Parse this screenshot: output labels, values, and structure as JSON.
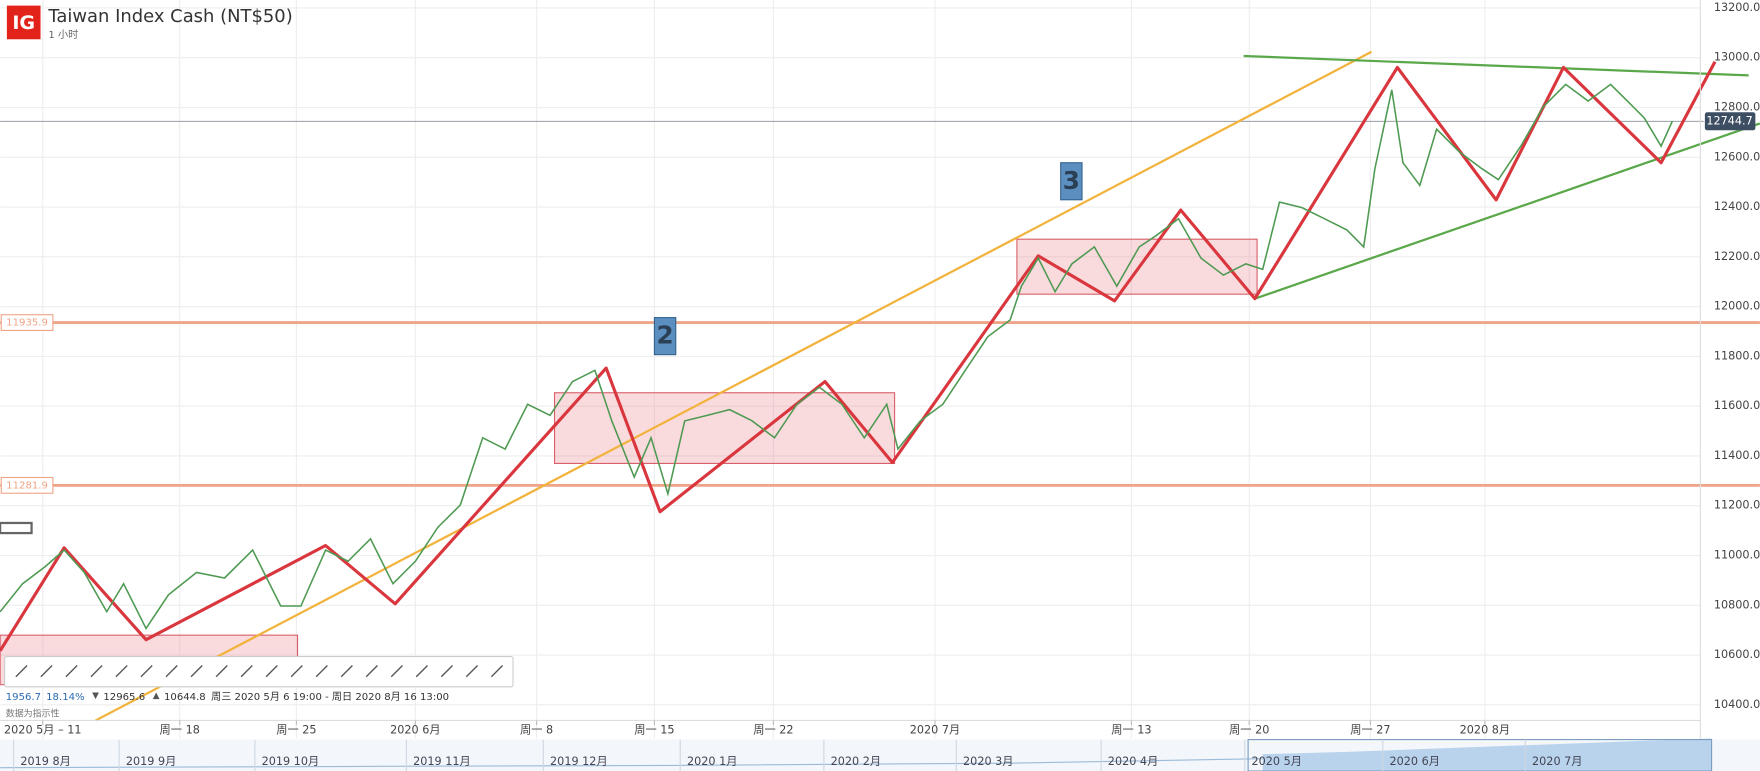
{
  "header": {
    "logo": "IG",
    "title": "Taiwan Index Cash (NT$50)",
    "interval": "1 小时"
  },
  "chart_data": {
    "type": "line",
    "color": "#4f9a52",
    "x": [
      0,
      20,
      40,
      57,
      75,
      95,
      110,
      130,
      150,
      175,
      200,
      225,
      250,
      268,
      290,
      310,
      330,
      350,
      370,
      390,
      410,
      430,
      450,
      470,
      490,
      510,
      530,
      545,
      565,
      580,
      595,
      610,
      630,
      650,
      670,
      690,
      710,
      730,
      750,
      770,
      790,
      800,
      820,
      840,
      860,
      880,
      900,
      910,
      925,
      940,
      955,
      975,
      995,
      1015,
      1030,
      1050,
      1070,
      1090,
      1110,
      1125,
      1140,
      1160,
      1180,
      1200,
      1215,
      1225,
      1240,
      1250,
      1265,
      1280,
      1300,
      1320,
      1335,
      1355,
      1375,
      1395,
      1415,
      1435,
      1450,
      1465,
      1480,
      1490
    ],
    "values": [
      10774,
      10887,
      10955,
      11022,
      10932,
      10774,
      10887,
      10707,
      10842,
      10932,
      10910,
      11022,
      10797,
      10797,
      11022,
      10977,
      11067,
      10887,
      10977,
      11113,
      11203,
      11473,
      11428,
      11608,
      11563,
      11699,
      11744,
      11541,
      11315,
      11473,
      11248,
      11541,
      11563,
      11586,
      11541,
      11473,
      11608,
      11676,
      11608,
      11473,
      11608,
      11428,
      11541,
      11608,
      11744,
      11879,
      11947,
      12082,
      12195,
      12060,
      12172,
      12240,
      12082,
      12240,
      12285,
      12353,
      12195,
      12127,
      12172,
      12150,
      12420,
      12398,
      12353,
      12308,
      12240,
      12555,
      12871,
      12578,
      12487,
      12713,
      12623,
      12555,
      12510,
      12645,
      12803,
      12893,
      12826,
      12893,
      12826,
      12758,
      12645,
      12745
    ],
    "xlim": [
      0,
      1515
    ],
    "ylim": [
      10265,
      13232
    ],
    "xticks": [
      {
        "value": 38,
        "label": "2020 5月 – 11"
      },
      {
        "value": 160,
        "label": "周一 18"
      },
      {
        "value": 264,
        "label": "周一 25"
      },
      {
        "value": 370,
        "label": "2020 6月"
      },
      {
        "value": 478,
        "label": "周一 8"
      },
      {
        "value": 583,
        "label": "周一 15"
      },
      {
        "value": 689,
        "label": "周一 22"
      },
      {
        "value": 833,
        "label": "2020 7月"
      },
      {
        "value": 1008,
        "label": "周一 13"
      },
      {
        "value": 1113,
        "label": "周一 20"
      },
      {
        "value": 1221,
        "label": "周一 27"
      },
      {
        "value": 1323,
        "label": "2020 8月"
      }
    ],
    "yticks": [
      {
        "value": 10400,
        "label": "10400.0"
      },
      {
        "value": 10600,
        "label": "10600.0"
      },
      {
        "value": 10800,
        "label": "10800.0"
      },
      {
        "value": 11000,
        "label": "11000.0"
      },
      {
        "value": 11200,
        "label": "11200.0"
      },
      {
        "value": 11400,
        "label": "11400.0"
      },
      {
        "value": 11600,
        "label": "11600.0"
      },
      {
        "value": 11800,
        "label": "11800.0"
      },
      {
        "value": 12000,
        "label": "12000.0"
      },
      {
        "value": 12200,
        "label": "12200.0"
      },
      {
        "value": 12400,
        "label": "12400.0"
      },
      {
        "value": 12600,
        "label": "12600.0"
      },
      {
        "value": 12800,
        "label": "12800.0"
      },
      {
        "value": 13000,
        "label": "13000.0"
      },
      {
        "value": 13200,
        "label": "13200.0"
      }
    ],
    "grid": true,
    "levels": [
      11935.9,
      11281.9
    ],
    "level_color": "#eea487",
    "current_price": 12744.7,
    "drawings": {
      "zigzag": {
        "color": "#d9363e",
        "x": [
          0,
          57,
          130,
          290,
          352,
          540,
          588,
          735,
          795,
          925,
          993,
          1052,
          1118,
          1245,
          1333,
          1393,
          1480,
          1528
        ],
        "y": [
          10617,
          11031,
          10662,
          11040,
          10806,
          11753,
          11176,
          11699,
          11374,
          12204,
          12023,
          12388,
          12032,
          12961,
          12429,
          12961,
          12578,
          12984
        ]
      },
      "trend_lines": [
        {
          "color": "#f2b33d",
          "x": [
            85,
            1222
          ],
          "y": [
            10337,
            13024
          ]
        },
        {
          "color": "#5aa84a",
          "x": [
            1108,
            1558
          ],
          "y": [
            13007,
            12929
          ]
        },
        {
          "color": "#5aa84a",
          "x": [
            1118,
            1568
          ],
          "y": [
            12032,
            12736
          ]
        }
      ],
      "rectangles": [
        {
          "x": [
            0,
            265
          ],
          "top": 10680,
          "bottom": 10481
        },
        {
          "x": [
            494,
            797
          ],
          "top": 11654,
          "bottom": 11370
        },
        {
          "x": [
            906,
            1120
          ],
          "top": 12271,
          "bottom": 12050
        }
      ]
    },
    "wave_labels": [
      "2",
      "3"
    ]
  },
  "stats": {
    "change": "1956.7",
    "change_pct": "18.14%",
    "high": "12965.6",
    "low": "10644.8",
    "range": "周三 2020 5月 6 19:00 - 周日 2020 8月 16 13:00",
    "note": "数据为指示性"
  },
  "navigator": [
    "2019 8月",
    "2019 9月",
    "2019 10月",
    "2019 11月",
    "2019 12月",
    "2020 1月",
    "2020 2月",
    "2020 3月",
    "2020 4月",
    "2020 5月",
    "2020 6月",
    "2020 7月"
  ]
}
